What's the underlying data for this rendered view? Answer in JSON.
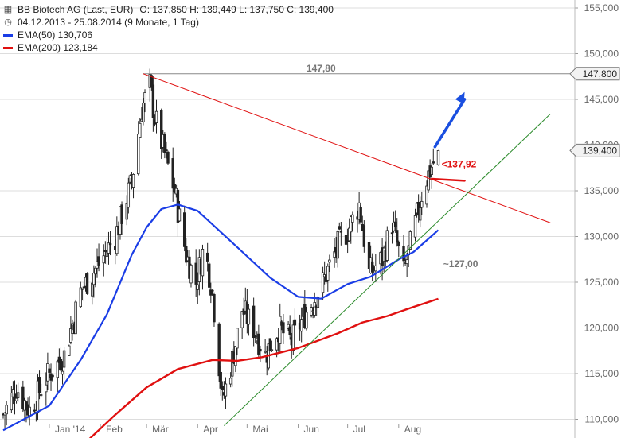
{
  "legend": {
    "title": "BB Biotech AG (Last, EUR)",
    "ohlc": "O: 137,850  H: 139,449  L: 137,750  C: 139,400",
    "period": "04.12.2013 - 25.08.2014 (9 Monate, 1 Tag)",
    "ema50": "EMA(50)  130,706",
    "ema200": "EMA(200)  123,184",
    "icon_chart": "candlestick-icon",
    "icon_clock": "clock-icon"
  },
  "colors": {
    "candle": "#222222",
    "ema50": "#1a3de6",
    "ema200": "#e01010",
    "resistance": "#e01010",
    "support": "#2a8a2a",
    "level": "#888888",
    "arrow": "#1a4fe0",
    "grid": "#dddddd"
  },
  "chart_data": {
    "type": "candlestick",
    "title": "BB Biotech AG (Last, EUR)",
    "xlabel": "",
    "ylabel": "",
    "ylim": [
      107.5,
      155
    ],
    "y_ticks": [
      110,
      115,
      120,
      125,
      130,
      135,
      140,
      145,
      150,
      155
    ],
    "y_tick_labels": [
      "110,000",
      "115,000",
      "120,000",
      "125,000",
      "130,000",
      "135,000",
      "140,000",
      "145,000",
      "150,000",
      "155,000"
    ],
    "x_ticks": [
      "Jan '14",
      "Feb",
      "Mär",
      "Apr",
      "Mai",
      "Jun",
      "Jul",
      "Aug"
    ],
    "x_tick_dates": [
      "2014-01-01",
      "2014-02-01",
      "2014-03-01",
      "2014-04-01",
      "2014-05-01",
      "2014-06-01",
      "2014-07-01",
      "2014-08-01"
    ],
    "date_range": [
      "2013-12-04",
      "2014-08-25"
    ],
    "last": {
      "open": 137.85,
      "high": 139.449,
      "low": 137.75,
      "close": 139.4
    },
    "close_path": [
      {
        "date": "2013-12-04",
        "value": 110.5
      },
      {
        "date": "2013-12-12",
        "value": 113.5
      },
      {
        "date": "2013-12-20",
        "value": 111.0
      },
      {
        "date": "2013-12-30",
        "value": 114.5
      },
      {
        "date": "2014-01-10",
        "value": 117.0
      },
      {
        "date": "2014-01-20",
        "value": 124.0
      },
      {
        "date": "2014-01-31",
        "value": 127.0
      },
      {
        "date": "2014-02-10",
        "value": 130.0
      },
      {
        "date": "2014-02-20",
        "value": 136.0
      },
      {
        "date": "2014-02-26",
        "value": 144.0
      },
      {
        "date": "2014-03-03",
        "value": 146.5
      },
      {
        "date": "2014-03-06",
        "value": 143.0
      },
      {
        "date": "2014-03-12",
        "value": 139.0
      },
      {
        "date": "2014-03-18",
        "value": 135.0
      },
      {
        "date": "2014-03-25",
        "value": 128.0
      },
      {
        "date": "2014-03-31",
        "value": 125.0
      },
      {
        "date": "2014-04-05",
        "value": 129.0
      },
      {
        "date": "2014-04-10",
        "value": 124.0
      },
      {
        "date": "2014-04-16",
        "value": 112.0
      },
      {
        "date": "2014-04-22",
        "value": 116.5
      },
      {
        "date": "2014-04-28",
        "value": 122.0
      },
      {
        "date": "2014-05-05",
        "value": 120.0
      },
      {
        "date": "2014-05-12",
        "value": 117.0
      },
      {
        "date": "2014-05-20",
        "value": 120.0
      },
      {
        "date": "2014-05-28",
        "value": 118.5
      },
      {
        "date": "2014-06-05",
        "value": 121.5
      },
      {
        "date": "2014-06-15",
        "value": 124.5
      },
      {
        "date": "2014-06-25",
        "value": 129.0
      },
      {
        "date": "2014-07-02",
        "value": 131.0
      },
      {
        "date": "2014-07-08",
        "value": 133.5
      },
      {
        "date": "2014-07-14",
        "value": 126.0
      },
      {
        "date": "2014-07-22",
        "value": 127.5
      },
      {
        "date": "2014-07-28",
        "value": 131.5
      },
      {
        "date": "2014-08-04",
        "value": 126.0
      },
      {
        "date": "2014-08-10",
        "value": 130.5
      },
      {
        "date": "2014-08-16",
        "value": 135.5
      },
      {
        "date": "2014-08-25",
        "value": 139.4
      }
    ],
    "ema50": [
      {
        "date": "2013-12-04",
        "value": 108.8
      },
      {
        "date": "2014-01-01",
        "value": 111.5
      },
      {
        "date": "2014-01-20",
        "value": 116.5
      },
      {
        "date": "2014-02-05",
        "value": 121.5
      },
      {
        "date": "2014-02-20",
        "value": 128.0
      },
      {
        "date": "2014-03-01",
        "value": 131.0
      },
      {
        "date": "2014-03-10",
        "value": 133.0
      },
      {
        "date": "2014-03-20",
        "value": 133.5
      },
      {
        "date": "2014-04-01",
        "value": 132.8
      },
      {
        "date": "2014-04-15",
        "value": 130.5
      },
      {
        "date": "2014-04-30",
        "value": 128.0
      },
      {
        "date": "2014-05-15",
        "value": 125.5
      },
      {
        "date": "2014-06-01",
        "value": 123.4
      },
      {
        "date": "2014-06-15",
        "value": 123.2
      },
      {
        "date": "2014-07-01",
        "value": 124.8
      },
      {
        "date": "2014-07-15",
        "value": 125.6
      },
      {
        "date": "2014-08-01",
        "value": 127.5
      },
      {
        "date": "2014-08-10",
        "value": 128.3
      },
      {
        "date": "2014-08-25",
        "value": 130.706
      }
    ],
    "ema200": [
      {
        "date": "2014-01-25",
        "value": 107.8
      },
      {
        "date": "2014-02-10",
        "value": 110.5
      },
      {
        "date": "2014-03-01",
        "value": 113.5
      },
      {
        "date": "2014-03-20",
        "value": 115.5
      },
      {
        "date": "2014-04-10",
        "value": 116.5
      },
      {
        "date": "2014-04-25",
        "value": 116.4
      },
      {
        "date": "2014-05-10",
        "value": 116.8
      },
      {
        "date": "2014-06-01",
        "value": 117.8
      },
      {
        "date": "2014-06-25",
        "value": 119.4
      },
      {
        "date": "2014-07-10",
        "value": 120.6
      },
      {
        "date": "2014-07-25",
        "value": 121.3
      },
      {
        "date": "2014-08-10",
        "value": 122.3
      },
      {
        "date": "2014-08-25",
        "value": 123.184
      }
    ],
    "trendlines": [
      {
        "name": "resistance",
        "from": {
          "date": "2014-02-27",
          "value": 147.8
        },
        "to": {
          "date": "2014-11-01",
          "value": 131.5
        },
        "label": "137,92",
        "label_value": 137.92
      },
      {
        "name": "support",
        "from": {
          "date": "2014-04-17",
          "value": 109.3
        },
        "to": {
          "date": "2014-11-01",
          "value": 143.4
        },
        "label": "127,00",
        "label_value": 127.0
      }
    ],
    "horizontal_level": {
      "value": 147.8,
      "label": "147,80",
      "from_date": "2014-02-27"
    },
    "price_tags": [
      {
        "label": "147,800",
        "value": 147.8
      },
      {
        "label": "139,400",
        "value": 139.4
      }
    ],
    "annotations": {
      "arrow_up": {
        "from": {
          "date": "2014-08-23",
          "value": 139.8
        },
        "to": {
          "date": "2014-09-10",
          "value": 145.8
        }
      },
      "red_mark": {
        "from": {
          "date": "2014-08-21",
          "value": 136.3
        },
        "to": {
          "date": "2014-09-10",
          "value": 136.1
        }
      }
    }
  }
}
